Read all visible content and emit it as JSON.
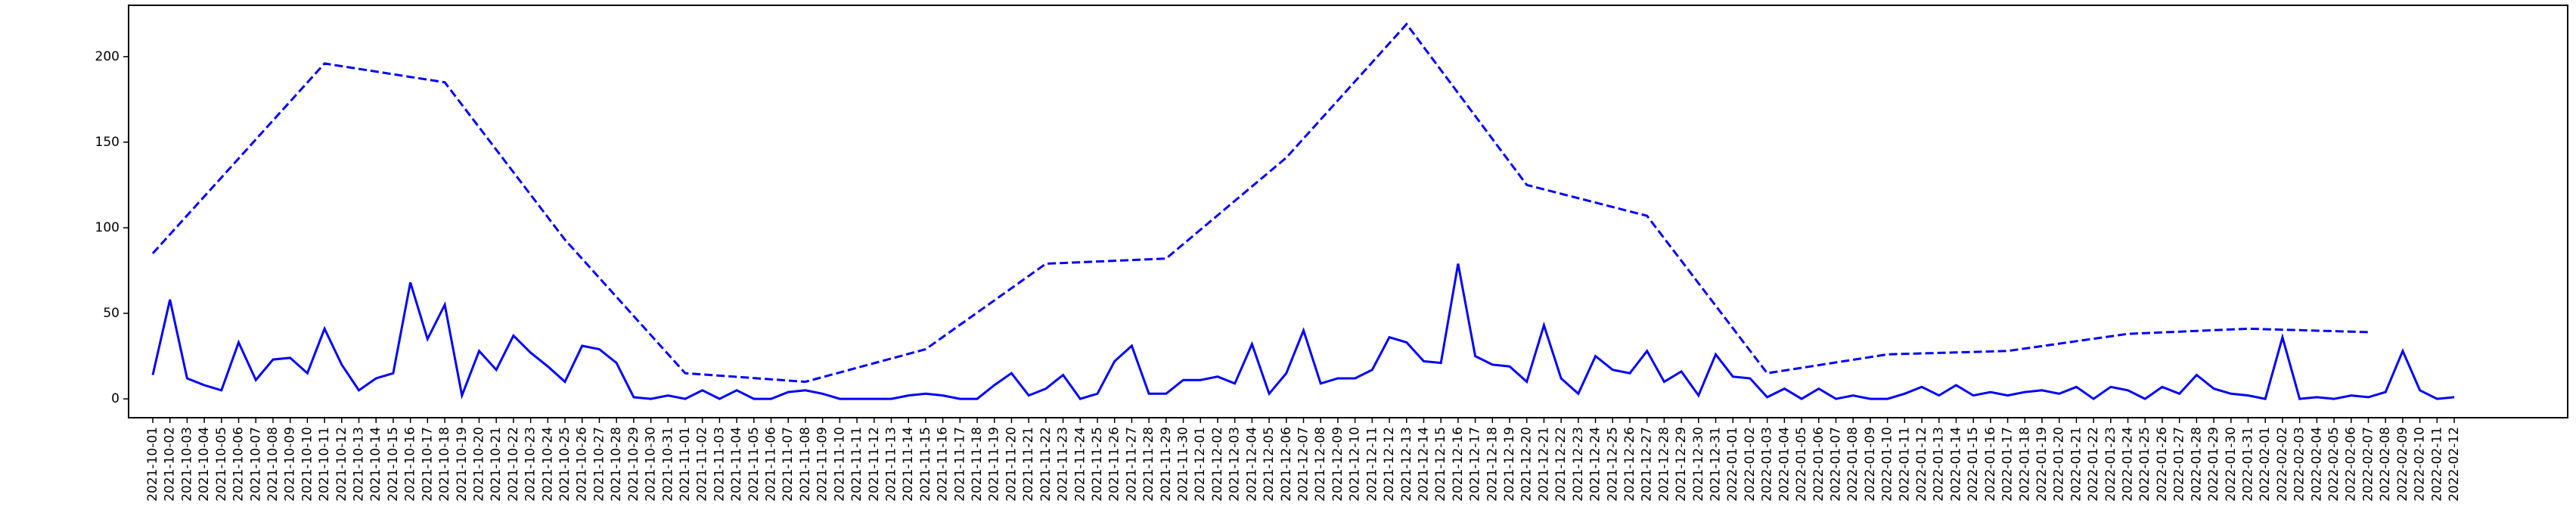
{
  "chart_data": {
    "type": "line",
    "categories": [
      "2021-10-01",
      "2021-10-02",
      "2021-10-03",
      "2021-10-04",
      "2021-10-05",
      "2021-10-06",
      "2021-10-07",
      "2021-10-08",
      "2021-10-09",
      "2021-10-10",
      "2021-10-11",
      "2021-10-12",
      "2021-10-13",
      "2021-10-14",
      "2021-10-15",
      "2021-10-16",
      "2021-10-17",
      "2021-10-18",
      "2021-10-19",
      "2021-10-20",
      "2021-10-21",
      "2021-10-22",
      "2021-10-23",
      "2021-10-24",
      "2021-10-25",
      "2021-10-26",
      "2021-10-27",
      "2021-10-28",
      "2021-10-29",
      "2021-10-30",
      "2021-10-31",
      "2021-11-01",
      "2021-11-02",
      "2021-11-03",
      "2021-11-04",
      "2021-11-05",
      "2021-11-06",
      "2021-11-07",
      "2021-11-08",
      "2021-11-09",
      "2021-11-10",
      "2021-11-11",
      "2021-11-12",
      "2021-11-13",
      "2021-11-14",
      "2021-11-15",
      "2021-11-16",
      "2021-11-17",
      "2021-11-18",
      "2021-11-19",
      "2021-11-20",
      "2021-11-21",
      "2021-11-22",
      "2021-11-23",
      "2021-11-24",
      "2021-11-25",
      "2021-11-26",
      "2021-11-27",
      "2021-11-28",
      "2021-11-29",
      "2021-11-30",
      "2021-12-01",
      "2021-12-02",
      "2021-12-03",
      "2021-12-04",
      "2021-12-05",
      "2021-12-06",
      "2021-12-07",
      "2021-12-08",
      "2021-12-09",
      "2021-12-10",
      "2021-12-11",
      "2021-12-12",
      "2021-12-13",
      "2021-12-14",
      "2021-12-15",
      "2021-12-16",
      "2021-12-17",
      "2021-12-18",
      "2021-12-19",
      "2021-12-20",
      "2021-12-21",
      "2021-12-22",
      "2021-12-23",
      "2021-12-24",
      "2021-12-25",
      "2021-12-26",
      "2021-12-27",
      "2021-12-28",
      "2021-12-29",
      "2021-12-30",
      "2021-12-31",
      "2022-01-01",
      "2022-01-02",
      "2022-01-03",
      "2022-01-04",
      "2022-01-05",
      "2022-01-06",
      "2022-01-07",
      "2022-01-08",
      "2022-01-09",
      "2022-01-10",
      "2022-01-11",
      "2022-01-12",
      "2022-01-13",
      "2022-01-14",
      "2022-01-15",
      "2022-01-16",
      "2022-01-17",
      "2022-01-18",
      "2022-01-19",
      "2022-01-20",
      "2022-01-21",
      "2022-01-22",
      "2022-01-23",
      "2022-01-24",
      "2022-01-25",
      "2022-01-26",
      "2022-01-27",
      "2022-01-28",
      "2022-01-29",
      "2022-01-30",
      "2022-01-31",
      "2022-02-01",
      "2022-02-02",
      "2022-02-03",
      "2022-02-04",
      "2022-02-05",
      "2022-02-06",
      "2022-02-07",
      "2022-02-08",
      "2022-02-09",
      "2022-02-10",
      "2022-02-11",
      "2022-02-12"
    ],
    "series": [
      {
        "color": "#0000ff",
        "dashed": false,
        "values": [
          14,
          58,
          12,
          8,
          5,
          33,
          11,
          23,
          24,
          15,
          41,
          20,
          5,
          12,
          15,
          68,
          35,
          55,
          2,
          28,
          17,
          37,
          27,
          19,
          10,
          31,
          29,
          21,
          1,
          0,
          2,
          0,
          5,
          0,
          5,
          0,
          0,
          4,
          5,
          3,
          0,
          0,
          0,
          0,
          2,
          3,
          2,
          0,
          0,
          8,
          15,
          2,
          6,
          14,
          0,
          3,
          22,
          31,
          3,
          3,
          11,
          11,
          13,
          9,
          32,
          3,
          15,
          40,
          9,
          12,
          12,
          17,
          36,
          33,
          22,
          21,
          79,
          25,
          20,
          19,
          10,
          43,
          12,
          3,
          25,
          17,
          15,
          28,
          10,
          16,
          2,
          26,
          13,
          12,
          1,
          6,
          0,
          6,
          0,
          2,
          0,
          0,
          3,
          7,
          2,
          8,
          2,
          4,
          2,
          4,
          5,
          3,
          7,
          0,
          7,
          5,
          0,
          7,
          3,
          14,
          6,
          3,
          2,
          0,
          36,
          0,
          1,
          0,
          2,
          1,
          4,
          28,
          5,
          0,
          1
        ]
      },
      {
        "color": "#0000ff",
        "dashed": true,
        "x": [
          "2021-10-01",
          "2021-10-11",
          "2021-10-18",
          "2021-10-25",
          "2021-11-01",
          "2021-11-08",
          "2021-11-15",
          "2021-11-22",
          "2021-11-29",
          "2021-12-06",
          "2021-12-13",
          "2021-12-20",
          "2021-12-27",
          "2022-01-03",
          "2022-01-10",
          "2022-01-17",
          "2022-01-24",
          "2022-01-31",
          "2022-02-07"
        ],
        "values": [
          85,
          196,
          185,
          93,
          15,
          10,
          29,
          79,
          82,
          141,
          219,
          125,
          107,
          15,
          26,
          28,
          38,
          41,
          39
        ]
      }
    ],
    "ylim": [
      -11,
      230
    ],
    "yticks": [
      0,
      50,
      100,
      150,
      200
    ]
  }
}
